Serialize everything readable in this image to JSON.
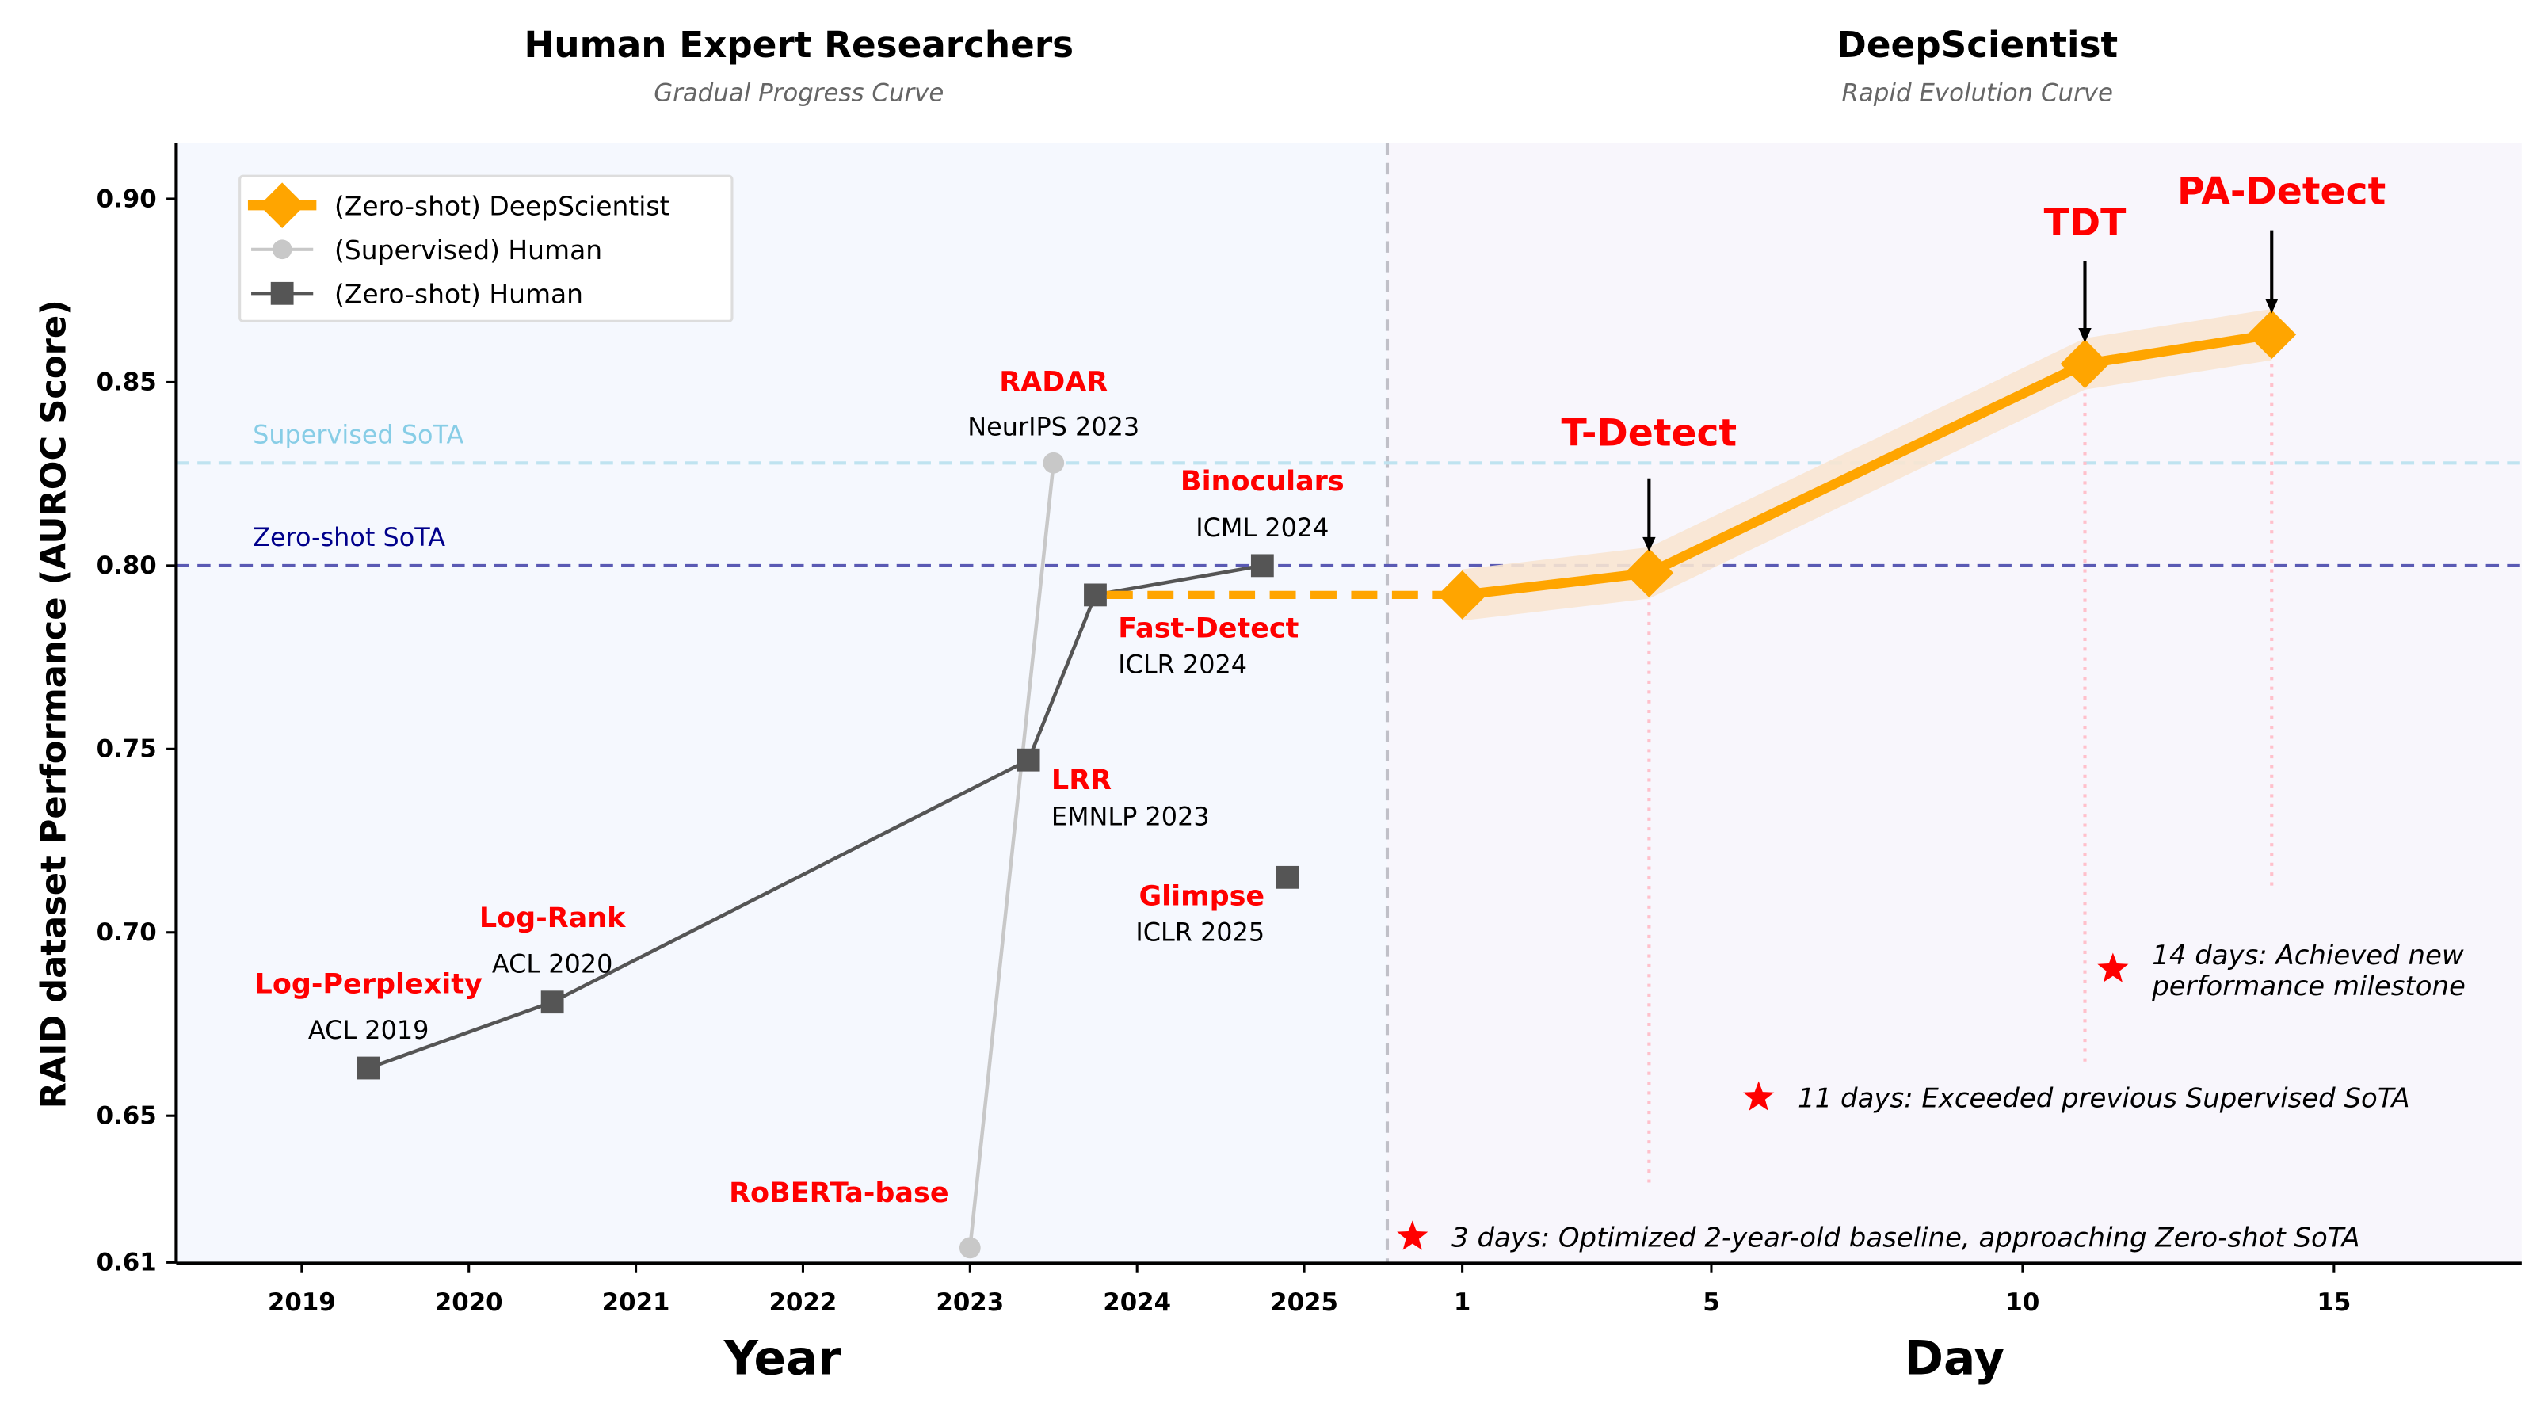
{
  "chart_data": {
    "type": "line",
    "panels": [
      {
        "title": "Human Expert Researchers",
        "subtitle": "Gradual Progress Curve",
        "xlabel": "Year",
        "xticks": [
          2019,
          2020,
          2021,
          2022,
          2023,
          2024,
          2025
        ],
        "xlim": [
          2018.25,
          2025.5
        ]
      },
      {
        "title": "DeepScientist",
        "subtitle": "Rapid Evolution Curve",
        "xlabel": "Day",
        "xticks": [
          1,
          5,
          10,
          15
        ],
        "xlim": [
          -0.2,
          18
        ]
      }
    ],
    "ylabel": "RAID dataset Performance (AUROC Score)",
    "yticks": [
      "0.61",
      "0.65",
      "0.70",
      "0.75",
      "0.80",
      "0.85",
      "0.90"
    ],
    "ylim": [
      0.61,
      0.915
    ],
    "legend": {
      "placement": "top-left",
      "entries": [
        "(Zero-shot) DeepScientist",
        "(Supervised) Human",
        "(Zero-shot) Human"
      ]
    },
    "reference_lines": [
      {
        "label": "Supervised SoTA",
        "y": 0.828,
        "color": "#add8e6"
      },
      {
        "label": "Zero-shot SoTA",
        "y": 0.8,
        "color": "#00008b"
      }
    ],
    "series": [
      {
        "name": "(Zero-shot) Human",
        "panel": 0,
        "color": "#555555",
        "marker": "square",
        "points": [
          {
            "x": 2019.4,
            "y": 0.663,
            "method": "Log-Perplexity",
            "venue": "ACL 2019"
          },
          {
            "x": 2020.5,
            "y": 0.681,
            "method": "Log-Rank",
            "venue": "ACL 2020"
          },
          {
            "x": 2023.35,
            "y": 0.747,
            "method": "LRR",
            "venue": "EMNLP 2023"
          },
          {
            "x": 2023.75,
            "y": 0.792,
            "method": "Fast-Detect",
            "venue": "ICLR 2024"
          },
          {
            "x": 2024.75,
            "y": 0.8,
            "method": "Binoculars",
            "venue": "ICML 2024"
          }
        ],
        "unconnected": [
          {
            "x": 2024.9,
            "y": 0.715,
            "method": "Glimpse",
            "venue": "ICLR 2025"
          }
        ]
      },
      {
        "name": "(Supervised) Human",
        "panel": 0,
        "color": "#c8c8c8",
        "marker": "circle",
        "points": [
          {
            "x": 2023.0,
            "y": 0.614,
            "method": "RoBERTa-base",
            "venue": ""
          },
          {
            "x": 2023.5,
            "y": 0.828,
            "method": "RADAR",
            "venue": "NeurIPS 2023"
          }
        ]
      },
      {
        "name": "(Zero-shot) DeepScientist",
        "panel": 1,
        "color": "#ffa500",
        "marker": "diamond",
        "band": 0.007,
        "points": [
          {
            "x": 1,
            "y": 0.792,
            "method": ""
          },
          {
            "x": 4,
            "y": 0.798,
            "method": "T-Detect"
          },
          {
            "x": 11,
            "y": 0.855,
            "method": "TDT"
          },
          {
            "x": 14,
            "y": 0.863,
            "method": "PA-Detect"
          }
        ]
      }
    ],
    "milestones": [
      {
        "day": 0.2,
        "y": 0.617,
        "text": "3 days: Optimized 2-year-old baseline, approaching Zero-shot SoTA"
      },
      {
        "day": 5.76,
        "y": 0.655,
        "text": "11 days: Exceeded previous Supervised SoTA"
      },
      {
        "day": 11.45,
        "y": 0.69,
        "text": [
          "14 days: Achieved new",
          "performance milestone"
        ]
      }
    ],
    "colors": {
      "annotation": "#ff0000",
      "left_bg": "#f5f8fe",
      "right_bg": "#f8f6fc",
      "band": "#f8e6d2",
      "divider": "#c0c0c8",
      "guide": "#ffc0cb"
    }
  }
}
